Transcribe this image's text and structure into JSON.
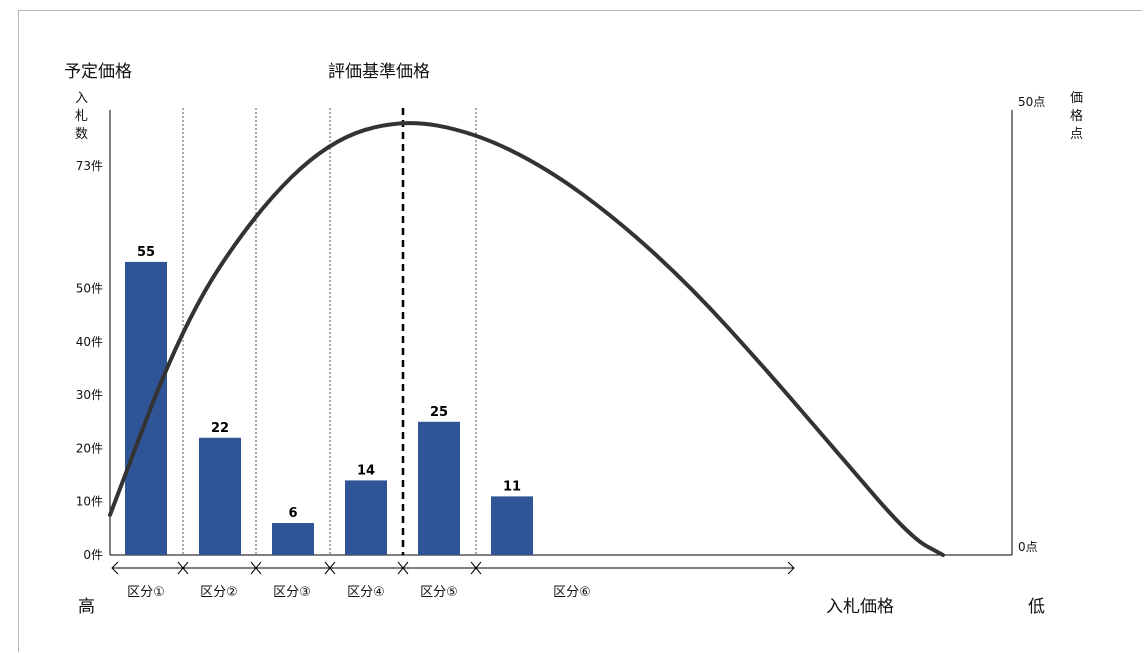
{
  "chart_data": {
    "type": "bar",
    "colors": {
      "bar": "#2f5597",
      "curve": "#333333",
      "axis": "#000000",
      "divider": "#555555",
      "frame": "#b8b8b8"
    },
    "grid": false,
    "legend": "none",
    "title_left": "予定価格",
    "title_center": "評価基準価格",
    "y_label": "入札数",
    "y2_label": "価格点",
    "x_label": "入札価格",
    "x_high_label": "高",
    "x_low_label": "低",
    "categories": [
      "区分①",
      "区分②",
      "区分③",
      "区分④",
      "区分⑤",
      "区分⑥"
    ],
    "values": [
      55,
      22,
      6,
      14,
      25,
      11
    ],
    "value_labels": [
      "55",
      "22",
      "6",
      "14",
      "25",
      "11"
    ],
    "y_ticks": [
      {
        "value": 0,
        "label": "0件"
      },
      {
        "value": 10,
        "label": "10件"
      },
      {
        "value": 20,
        "label": "20件"
      },
      {
        "value": 30,
        "label": "30件"
      },
      {
        "value": 40,
        "label": "40件"
      },
      {
        "value": 50,
        "label": "50件"
      },
      {
        "value": 73,
        "label": "73件"
      }
    ],
    "y_range": [
      0,
      73
    ],
    "y2_ticks": [
      {
        "value": 0,
        "label": "0点"
      },
      {
        "value": 50,
        "label": "50点"
      }
    ],
    "y2_range": [
      0,
      50
    ],
    "curve": {
      "name": "価格点",
      "x": [
        0,
        1.0,
        2.0,
        3.0,
        4.0,
        5.0,
        6.0,
        7.0,
        8.0,
        9.0,
        10.0,
        11.0,
        11.45
      ],
      "y": [
        4.5,
        26.0,
        38.5,
        46.5,
        49.0,
        47.5,
        43.5,
        37.5,
        30.0,
        21.0,
        11.5,
        2.0,
        0.0
      ]
    }
  }
}
